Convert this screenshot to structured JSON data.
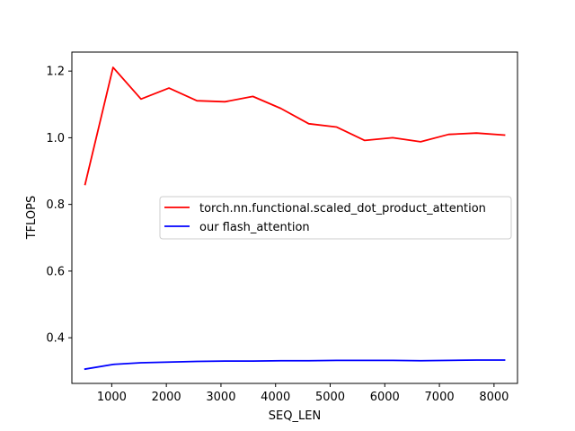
{
  "chart_data": {
    "type": "line",
    "title": "",
    "xlabel": "SEQ_LEN",
    "ylabel": "TFLOPS",
    "xlim": [
      270,
      8430
    ],
    "ylim": [
      0.263,
      1.257
    ],
    "xticks": [
      1000,
      2000,
      3000,
      4000,
      5000,
      6000,
      7000,
      8000
    ],
    "xtick_labels": [
      "1000",
      "2000",
      "3000",
      "4000",
      "5000",
      "6000",
      "7000",
      "8000"
    ],
    "yticks": [
      0.4,
      0.6,
      0.8,
      1.0,
      1.2
    ],
    "ytick_labels": [
      "0.4",
      "0.6",
      "0.8",
      "1.0",
      "1.2"
    ],
    "legend_placement": "center-right",
    "x": [
      512,
      1024,
      1536,
      2048,
      2560,
      3072,
      3584,
      4096,
      4608,
      5120,
      5632,
      6144,
      6656,
      7168,
      7680,
      8192
    ],
    "series": [
      {
        "name": "torch.nn.functional.scaled_dot_product_attention",
        "color": "#ff0000",
        "values": [
          0.86,
          1.211,
          1.116,
          1.149,
          1.111,
          1.108,
          1.124,
          1.088,
          1.042,
          1.032,
          0.992,
          1.0,
          0.988,
          1.01,
          1.014,
          1.008
        ]
      },
      {
        "name": "our flash_attention",
        "color": "#0000ff",
        "values": [
          0.306,
          0.32,
          0.325,
          0.327,
          0.329,
          0.33,
          0.33,
          0.331,
          0.331,
          0.332,
          0.332,
          0.332,
          0.331,
          0.332,
          0.333,
          0.333
        ]
      }
    ]
  }
}
